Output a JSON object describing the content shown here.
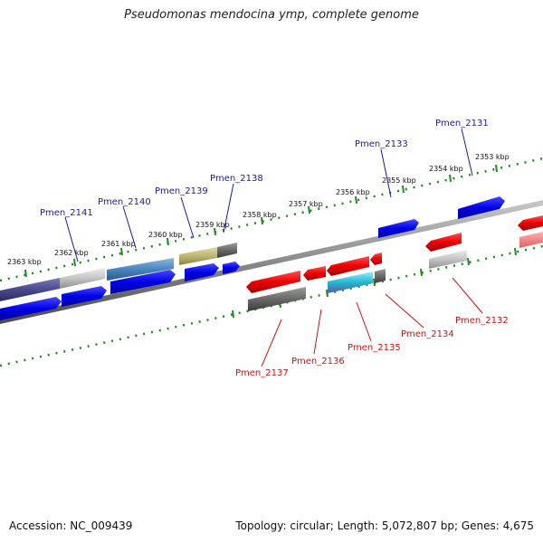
{
  "title": "Pseudomonas mendocina ymp, complete genome",
  "footer": {
    "accession": "Accession: NC_009439",
    "summary": "Topology: circular; Length: 5,072,807 bp; Genes: 4,675"
  },
  "colors": {
    "blue_label": "#1a1aa8",
    "red_label": "#cc1111",
    "tick": "#1f8a1f",
    "backbone": "#8a8a8a"
  },
  "scale_labels": [
    "2363 kbp",
    "2362 kbp",
    "2361 kbp",
    "2360 kbp",
    "2359 kbp",
    "2358 kbp",
    "2357 kbp",
    "2356 kbp",
    "2355 kbp",
    "2354 kbp",
    "2353 kbp"
  ],
  "forward_genes": [
    "Pmen_2141",
    "Pmen_2140",
    "Pmen_2139",
    "Pmen_2138",
    "Pmen_2133",
    "Pmen_2131"
  ],
  "reverse_genes": [
    "Pmen_2137",
    "Pmen_2136",
    "Pmen_2135",
    "Pmen_2134",
    "Pmen_2132"
  ]
}
